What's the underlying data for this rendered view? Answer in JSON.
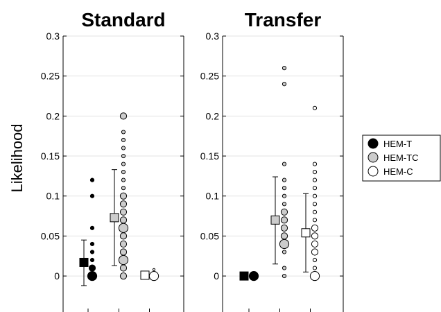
{
  "chart_data": {
    "type": "scatter",
    "ylabel": "Likelihood",
    "ylim": [
      -0.045,
      0.3
    ],
    "yticks": [
      0,
      0.05,
      0.1,
      0.15,
      0.2,
      0.25,
      0.3
    ],
    "ytick_labels": [
      "0",
      "0.05",
      "0.1",
      "0.15",
      "0.2",
      "0.25",
      "0.3"
    ],
    "grid": "horizontal",
    "legend_position": "right",
    "series_styles": [
      {
        "name": "HEM-T",
        "fill": "#000000"
      },
      {
        "name": "HEM-TC",
        "fill": "#cccccc"
      },
      {
        "name": "HEM-C",
        "fill": "#ffffff"
      }
    ],
    "panels": [
      {
        "title": "Standard",
        "series": [
          {
            "name": "HEM-T",
            "mean": 0.017,
            "err_low": -0.012,
            "err_high": 0.045,
            "points": [
              {
                "y": 0,
                "n": 3
              },
              {
                "y": 0.01,
                "n": 2
              },
              {
                "y": 0.02,
                "n": 1
              },
              {
                "y": 0.03,
                "n": 1
              },
              {
                "y": 0.04,
                "n": 1
              },
              {
                "y": 0.06,
                "n": 1
              },
              {
                "y": 0.1,
                "n": 1
              },
              {
                "y": 0.12,
                "n": 1
              }
            ]
          },
          {
            "name": "HEM-TC",
            "mean": 0.073,
            "err_low": 0.013,
            "err_high": 0.133,
            "points": [
              {
                "y": 0,
                "n": 2
              },
              {
                "y": 0.01,
                "n": 2
              },
              {
                "y": 0.02,
                "n": 3
              },
              {
                "y": 0.03,
                "n": 2
              },
              {
                "y": 0.04,
                "n": 2
              },
              {
                "y": 0.05,
                "n": 2
              },
              {
                "y": 0.06,
                "n": 3
              },
              {
                "y": 0.07,
                "n": 2
              },
              {
                "y": 0.08,
                "n": 2
              },
              {
                "y": 0.09,
                "n": 2
              },
              {
                "y": 0.1,
                "n": 2
              },
              {
                "y": 0.11,
                "n": 1
              },
              {
                "y": 0.12,
                "n": 1
              },
              {
                "y": 0.13,
                "n": 1
              },
              {
                "y": 0.14,
                "n": 1
              },
              {
                "y": 0.15,
                "n": 1
              },
              {
                "y": 0.16,
                "n": 1
              },
              {
                "y": 0.17,
                "n": 1
              },
              {
                "y": 0.18,
                "n": 1
              },
              {
                "y": 0.2,
                "n": 2
              }
            ]
          },
          {
            "name": "HEM-C",
            "mean": 0.001,
            "err_low": 0,
            "err_high": 0.002,
            "points": [
              {
                "y": 0,
                "n": 3
              },
              {
                "y": 0.008,
                "n": 0
              }
            ]
          }
        ]
      },
      {
        "title": "Transfer",
        "series": [
          {
            "name": "HEM-T",
            "mean": 0.0,
            "err_low": 0,
            "err_high": 0,
            "points": [
              {
                "y": 0,
                "n": 3
              }
            ]
          },
          {
            "name": "HEM-TC",
            "mean": 0.07,
            "err_low": 0.015,
            "err_high": 0.124,
            "points": [
              {
                "y": 0,
                "n": 1
              },
              {
                "y": 0.01,
                "n": 1
              },
              {
                "y": 0.03,
                "n": 1
              },
              {
                "y": 0.04,
                "n": 3
              },
              {
                "y": 0.05,
                "n": 2
              },
              {
                "y": 0.06,
                "n": 2
              },
              {
                "y": 0.07,
                "n": 2
              },
              {
                "y": 0.08,
                "n": 2
              },
              {
                "y": 0.09,
                "n": 1
              },
              {
                "y": 0.1,
                "n": 1
              },
              {
                "y": 0.11,
                "n": 1
              },
              {
                "y": 0.12,
                "n": 1
              },
              {
                "y": 0.14,
                "n": 1
              },
              {
                "y": 0.24,
                "n": 1
              },
              {
                "y": 0.26,
                "n": 1
              }
            ]
          },
          {
            "name": "HEM-C",
            "mean": 0.054,
            "err_low": 0.005,
            "err_high": 0.103,
            "points": [
              {
                "y": 0,
                "n": 3
              },
              {
                "y": 0.01,
                "n": 1
              },
              {
                "y": 0.02,
                "n": 1
              },
              {
                "y": 0.03,
                "n": 2
              },
              {
                "y": 0.04,
                "n": 2
              },
              {
                "y": 0.05,
                "n": 2
              },
              {
                "y": 0.06,
                "n": 2
              },
              {
                "y": 0.07,
                "n": 1
              },
              {
                "y": 0.08,
                "n": 1
              },
              {
                "y": 0.09,
                "n": 1
              },
              {
                "y": 0.1,
                "n": 1
              },
              {
                "y": 0.11,
                "n": 1
              },
              {
                "y": 0.12,
                "n": 1
              },
              {
                "y": 0.13,
                "n": 1
              },
              {
                "y": 0.14,
                "n": 1
              },
              {
                "y": 0.21,
                "n": 1
              }
            ]
          }
        ]
      }
    ]
  }
}
